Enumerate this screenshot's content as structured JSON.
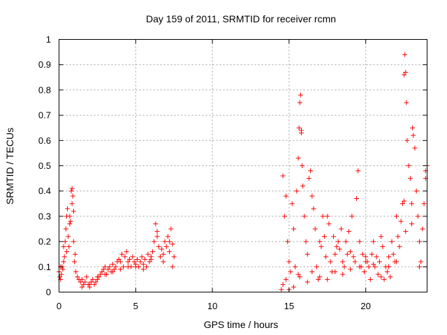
{
  "chart_data": {
    "type": "scatter",
    "title": "Day 159 of 2011, SRMTID for receiver rcmn",
    "xlabel": "GPS time / hours",
    "ylabel": "SRMTID / TECUs",
    "xlim": [
      0,
      24
    ],
    "ylim": [
      0,
      1
    ],
    "xticks": [
      0,
      5,
      10,
      15,
      20
    ],
    "xtick_labels": [
      "0",
      "5",
      "10",
      "15",
      "20"
    ],
    "yticks": [
      0,
      0.1,
      0.2,
      0.3,
      0.4,
      0.5,
      0.6,
      0.7,
      0.8,
      0.9,
      1
    ],
    "ytick_labels": [
      "0",
      "0.1",
      "0.2",
      "0.3",
      "0.4",
      "0.5",
      "0.6",
      "0.7",
      "0.8",
      "0.9",
      "1"
    ],
    "grid": true,
    "marker": "+",
    "marker_color": "#ff0000",
    "series": [
      {
        "x": [
          0.0,
          0.05,
          0.1,
          0.15,
          0.2,
          0.25,
          0.3,
          0.35,
          0.4,
          0.45,
          0.5,
          0.55,
          0.6,
          0.65,
          0.7,
          0.75,
          0.8,
          0.85,
          0.9,
          0.95,
          1.0,
          1.1,
          1.2,
          1.3,
          1.4,
          1.5,
          1.6,
          1.7,
          1.8,
          1.9,
          2.0,
          2.1,
          2.2,
          2.3,
          2.4,
          2.5,
          2.6,
          2.7,
          2.8,
          2.9,
          3.0,
          3.1,
          3.2,
          3.3,
          3.4,
          3.5,
          3.6,
          3.7,
          3.8,
          3.9,
          4.0,
          4.1,
          4.2,
          4.3,
          4.4,
          4.5,
          4.6,
          4.7,
          4.8,
          4.9,
          5.0,
          5.1,
          5.2,
          5.3,
          5.4,
          5.5,
          5.6,
          5.7,
          5.8,
          5.9,
          6.0,
          6.1,
          6.2,
          6.3,
          6.4,
          6.5,
          6.6,
          6.7,
          6.8,
          6.9,
          7.0,
          7.1,
          7.2,
          7.3,
          7.4,
          7.5,
          0.1,
          0.3,
          0.5,
          0.7,
          0.85,
          0.95,
          1.05,
          1.5,
          2.0,
          2.5,
          3.0,
          3.5,
          4.0,
          4.5,
          5.0,
          5.5,
          6.0,
          6.4,
          6.8,
          7.2,
          7.4
        ],
        "y": [
          0.08,
          0.06,
          0.05,
          0.07,
          0.1,
          0.09,
          0.12,
          0.14,
          0.2,
          0.25,
          0.3,
          0.33,
          0.22,
          0.18,
          0.3,
          0.28,
          0.4,
          0.41,
          0.38,
          0.2,
          0.12,
          0.08,
          0.06,
          0.05,
          0.04,
          0.05,
          0.03,
          0.04,
          0.06,
          0.03,
          0.02,
          0.04,
          0.05,
          0.03,
          0.04,
          0.05,
          0.06,
          0.07,
          0.08,
          0.09,
          0.1,
          0.07,
          0.09,
          0.1,
          0.08,
          0.11,
          0.09,
          0.1,
          0.12,
          0.13,
          0.12,
          0.15,
          0.1,
          0.14,
          0.16,
          0.12,
          0.13,
          0.1,
          0.14,
          0.12,
          0.11,
          0.13,
          0.1,
          0.12,
          0.14,
          0.11,
          0.13,
          0.1,
          0.15,
          0.12,
          0.14,
          0.16,
          0.2,
          0.27,
          0.22,
          0.18,
          0.14,
          0.17,
          0.15,
          0.2,
          0.18,
          0.22,
          0.16,
          0.25,
          0.19,
          0.14,
          0.1,
          0.18,
          0.16,
          0.27,
          0.35,
          0.32,
          0.15,
          0.02,
          0.03,
          0.06,
          0.07,
          0.08,
          0.09,
          0.1,
          0.1,
          0.09,
          0.13,
          0.24,
          0.12,
          0.2,
          0.1
        ]
      },
      {
        "x": [
          14.5,
          14.6,
          14.7,
          14.8,
          14.9,
          15.0,
          15.1,
          15.2,
          15.3,
          15.4,
          15.5,
          15.6,
          15.65,
          15.7,
          15.75,
          15.8,
          15.85,
          15.9,
          16.0,
          16.1,
          16.2,
          16.3,
          16.4,
          16.5,
          16.6,
          16.7,
          16.8,
          16.9,
          17.0,
          17.1,
          17.2,
          17.3,
          17.4,
          17.5,
          17.6,
          17.7,
          17.8,
          17.9,
          18.0,
          18.1,
          18.2,
          18.3,
          18.4,
          18.5,
          18.6,
          18.7,
          18.8,
          18.9,
          19.0,
          19.1,
          19.2,
          19.3,
          19.4,
          19.5,
          19.6,
          19.7,
          19.8,
          19.9,
          20.0,
          20.1,
          20.2,
          20.3,
          20.4,
          20.5,
          20.6,
          20.7,
          20.8,
          20.9,
          21.0,
          21.1,
          21.2,
          21.3,
          21.4,
          21.5,
          21.6,
          21.7,
          21.8,
          21.9,
          22.0,
          22.1,
          22.2,
          22.3,
          22.4,
          22.5,
          22.55,
          22.6,
          22.65,
          22.7,
          22.8,
          22.9,
          23.0,
          23.05,
          23.1,
          23.2,
          23.3,
          23.4,
          23.5,
          23.6,
          23.7,
          23.8,
          23.9,
          24.0,
          14.6,
          14.8,
          15.0,
          15.3,
          15.6,
          15.7,
          15.8,
          16.2,
          16.5,
          17.0,
          17.5,
          18.0,
          18.5,
          19.0,
          19.6,
          20.0,
          20.5,
          21.0,
          21.5,
          22.0,
          22.5,
          22.6,
          23.0,
          23.5,
          23.9
        ],
        "y": [
          0.01,
          0.46,
          0.3,
          0.38,
          0.2,
          0.12,
          0.08,
          0.35,
          0.25,
          0.1,
          0.4,
          0.53,
          0.65,
          0.75,
          0.78,
          0.64,
          0.5,
          0.42,
          0.3,
          0.2,
          0.15,
          0.45,
          0.48,
          0.38,
          0.33,
          0.25,
          0.1,
          0.05,
          0.2,
          0.18,
          0.3,
          0.22,
          0.14,
          0.3,
          0.27,
          0.12,
          0.08,
          0.22,
          0.15,
          0.18,
          0.2,
          0.17,
          0.25,
          0.12,
          0.1,
          0.2,
          0.15,
          0.24,
          0.16,
          0.3,
          0.14,
          0.12,
          0.37,
          0.48,
          0.2,
          0.1,
          0.15,
          0.08,
          0.14,
          0.12,
          0.1,
          0.05,
          0.15,
          0.2,
          0.1,
          0.14,
          0.07,
          0.12,
          0.22,
          0.18,
          0.05,
          0.1,
          0.08,
          0.14,
          0.06,
          0.2,
          0.15,
          0.12,
          0.3,
          0.22,
          0.18,
          0.28,
          0.35,
          0.86,
          0.94,
          0.87,
          0.75,
          0.6,
          0.5,
          0.45,
          0.35,
          0.65,
          0.62,
          0.57,
          0.4,
          0.3,
          0.2,
          0.12,
          0.25,
          0.35,
          0.45,
          0.5,
          0.03,
          0.05,
          0.01,
          0.02,
          0.07,
          0.06,
          0.63,
          0.04,
          0.08,
          0.06,
          0.05,
          0.08,
          0.07,
          0.09,
          0.1,
          0.12,
          0.11,
          0.06,
          0.1,
          0.12,
          0.36,
          0.24,
          0.27,
          0.1,
          0.48
        ]
      }
    ]
  }
}
